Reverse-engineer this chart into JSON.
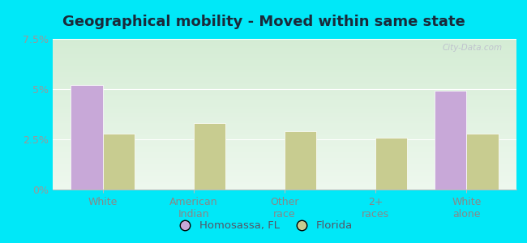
{
  "title": "Geographical mobility - Moved within same state",
  "categories": [
    "White",
    "American\nIndian",
    "Other\nrace",
    "2+\nraces",
    "White\nalone"
  ],
  "homosassa_values": [
    5.2,
    0,
    0,
    0,
    4.9
  ],
  "florida_values": [
    2.8,
    3.3,
    2.9,
    2.6,
    2.8
  ],
  "homosassa_color": "#c8a8d8",
  "florida_color": "#c8cc90",
  "bar_width": 0.35,
  "ylim": [
    0,
    7.5
  ],
  "yticks": [
    0,
    2.5,
    5.0,
    7.5
  ],
  "ytick_labels": [
    "0%",
    "2.5%",
    "5%",
    "7.5%"
  ],
  "background_color": "#00e8f8",
  "grad_top": "#d4ecd4",
  "grad_bottom": "#eef8ee",
  "legend_labels": [
    "Homosassa, FL",
    "Florida"
  ],
  "watermark": "City-Data.com",
  "title_fontsize": 13,
  "axis_fontsize": 9,
  "tick_fontsize": 9
}
